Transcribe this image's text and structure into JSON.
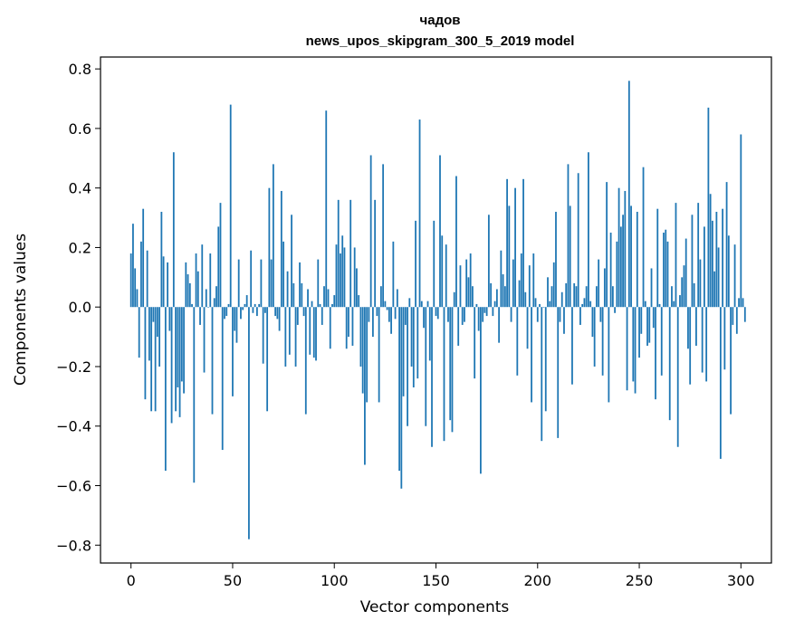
{
  "chart_data": {
    "type": "bar",
    "title": "чадов",
    "subtitle": "news_upos_skipgram_300_5_2019 model",
    "xlabel": "Vector components",
    "ylabel": "Components values",
    "xlim": [
      -15,
      315
    ],
    "ylim": [
      -0.86,
      0.84
    ],
    "xticks": [
      0,
      50,
      100,
      150,
      200,
      250,
      300
    ],
    "yticks": [
      -0.8,
      -0.6,
      -0.4,
      -0.2,
      0.0,
      0.2,
      0.4,
      0.6,
      0.8
    ],
    "ytick_labels": [
      "−0.8",
      "−0.6",
      "−0.4",
      "−0.2",
      "0.0",
      "0.2",
      "0.4",
      "0.6",
      "0.8"
    ],
    "grid": false,
    "bar_color": "#1f77b4",
    "values": [
      0.18,
      0.28,
      0.13,
      0.06,
      -0.17,
      0.22,
      0.33,
      -0.31,
      0.19,
      -0.18,
      -0.35,
      -0.05,
      -0.35,
      -0.1,
      -0.2,
      0.32,
      0.17,
      -0.55,
      0.15,
      -0.08,
      -0.39,
      0.52,
      -0.35,
      -0.27,
      -0.37,
      -0.25,
      -0.29,
      0.15,
      0.11,
      0.08,
      0.01,
      -0.59,
      0.18,
      0.12,
      -0.06,
      0.21,
      -0.22,
      0.06,
      0.0,
      0.18,
      -0.36,
      0.03,
      0.07,
      0.27,
      0.35,
      -0.48,
      -0.04,
      -0.03,
      0.01,
      0.68,
      -0.3,
      -0.08,
      -0.12,
      0.16,
      -0.04,
      -0.01,
      0.01,
      0.04,
      -0.78,
      0.19,
      -0.02,
      0.01,
      -0.03,
      0.01,
      0.16,
      -0.19,
      -0.02,
      -0.35,
      0.4,
      0.16,
      0.48,
      -0.03,
      -0.04,
      -0.08,
      0.39,
      0.22,
      -0.2,
      0.12,
      -0.16,
      0.31,
      0.08,
      -0.2,
      -0.06,
      0.15,
      0.08,
      -0.03,
      -0.36,
      0.06,
      -0.16,
      0.02,
      -0.17,
      -0.18,
      0.16,
      0.01,
      -0.06,
      0.07,
      0.66,
      0.06,
      -0.14,
      0.01,
      0.04,
      0.21,
      0.36,
      0.18,
      0.24,
      0.2,
      -0.14,
      -0.1,
      0.36,
      -0.13,
      0.2,
      0.13,
      0.04,
      -0.2,
      -0.29,
      -0.53,
      -0.32,
      -0.05,
      0.51,
      -0.1,
      0.36,
      -0.03,
      -0.32,
      0.07,
      0.48,
      0.02,
      -0.01,
      -0.05,
      -0.09,
      0.22,
      -0.04,
      0.06,
      -0.55,
      -0.61,
      -0.3,
      -0.06,
      -0.4,
      0.03,
      -0.2,
      -0.27,
      0.29,
      -0.24,
      0.63,
      0.02,
      -0.07,
      -0.4,
      0.02,
      -0.18,
      -0.47,
      0.29,
      -0.03,
      -0.04,
      0.51,
      0.24,
      -0.45,
      0.21,
      -0.05,
      -0.38,
      -0.42,
      0.05,
      0.44,
      -0.13,
      0.14,
      -0.06,
      -0.05,
      0.16,
      0.1,
      0.18,
      0.07,
      -0.24,
      0.01,
      -0.08,
      -0.56,
      -0.05,
      -0.02,
      -0.03,
      0.31,
      0.08,
      -0.03,
      0.02,
      0.06,
      -0.12,
      0.19,
      0.11,
      0.07,
      0.43,
      0.34,
      -0.05,
      0.16,
      0.4,
      -0.23,
      0.09,
      0.18,
      0.43,
      0.05,
      -0.14,
      0.14,
      -0.32,
      0.18,
      0.03,
      -0.05,
      0.01,
      -0.45,
      0.0,
      -0.35,
      0.1,
      0.02,
      0.07,
      0.15,
      0.32,
      -0.44,
      -0.05,
      0.05,
      -0.09,
      0.08,
      0.48,
      0.34,
      -0.26,
      0.08,
      0.07,
      0.45,
      -0.06,
      0.01,
      0.03,
      0.07,
      0.52,
      0.02,
      -0.1,
      -0.2,
      0.07,
      0.16,
      -0.05,
      -0.23,
      0.13,
      0.42,
      -0.32,
      0.25,
      0.07,
      -0.02,
      0.22,
      0.4,
      0.27,
      0.31,
      0.39,
      -0.28,
      0.76,
      0.34,
      -0.25,
      -0.29,
      0.32,
      -0.17,
      -0.09,
      0.47,
      0.02,
      -0.13,
      -0.12,
      0.13,
      -0.07,
      -0.31,
      0.33,
      0.01,
      -0.23,
      0.25,
      0.26,
      0.22,
      -0.38,
      0.07,
      0.02,
      0.35,
      -0.47,
      0.04,
      0.1,
      0.14,
      0.23,
      -0.14,
      -0.26,
      0.31,
      0.08,
      -0.13,
      0.35,
      0.16,
      -0.22,
      0.27,
      -0.25,
      0.67,
      0.38,
      0.29,
      0.12,
      0.32,
      0.2,
      -0.51,
      0.33,
      -0.21,
      0.42,
      0.24,
      -0.36,
      -0.06,
      0.21,
      -0.09,
      0.03,
      0.58,
      0.03,
      -0.05
    ]
  }
}
